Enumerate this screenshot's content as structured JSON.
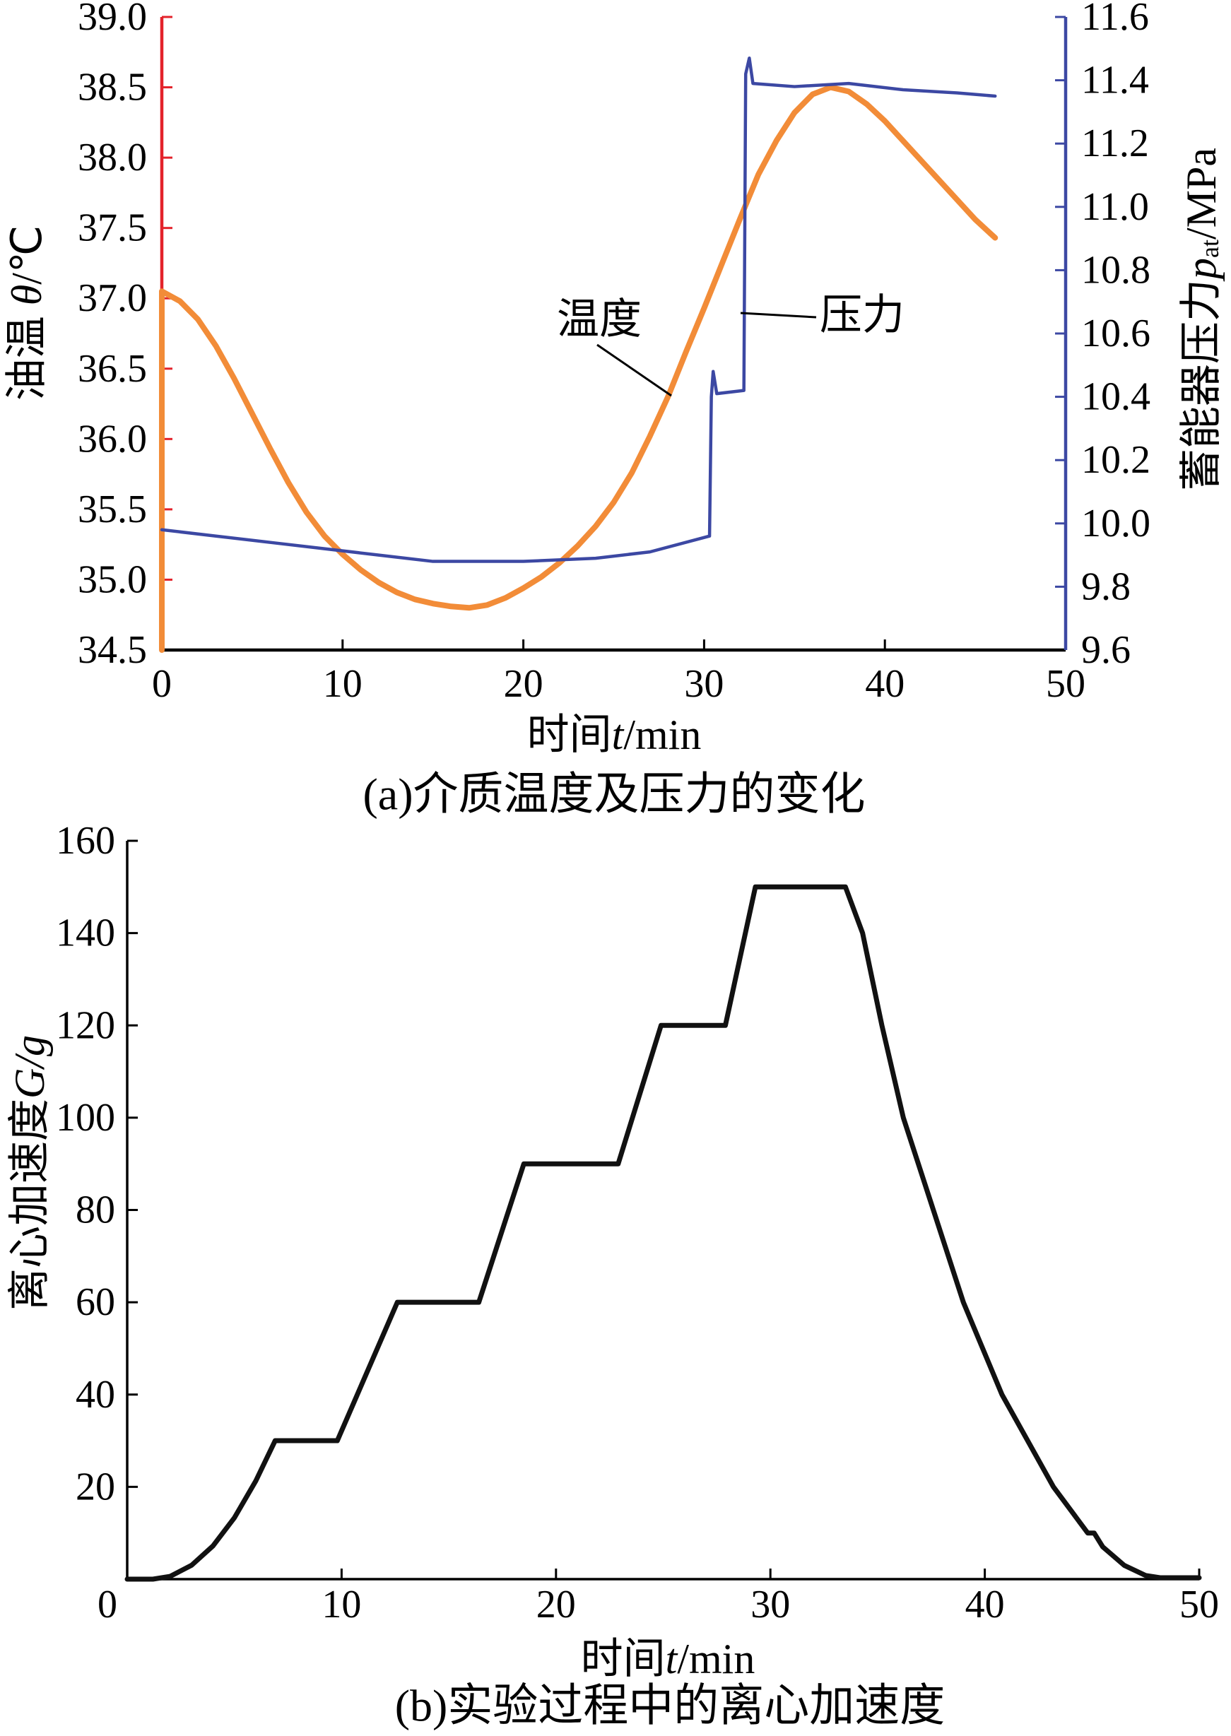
{
  "chart_data": [
    {
      "type": "line",
      "caption": "(a)介质温度及压力的变化",
      "xlabel": "时间t/min",
      "xlim": [
        0,
        50
      ],
      "xticks": [
        "0",
        "10",
        "20",
        "30",
        "40",
        "50"
      ],
      "ylabel": "油温 θ/℃",
      "ylim": [
        34.5,
        39.0
      ],
      "yticks": [
        "34.5",
        "35.0",
        "35.5",
        "36.0",
        "36.5",
        "37.0",
        "37.5",
        "38.0",
        "38.5",
        "39.0"
      ],
      "ylabel_right": "蓄能器压力pat/MPa",
      "ylim_right": [
        9.6,
        11.6
      ],
      "yticks_right": [
        "9.6",
        "9.8",
        "10.0",
        "10.2",
        "10.4",
        "10.6",
        "10.8",
        "11.0",
        "11.2",
        "11.4",
        "11.6"
      ],
      "grid": false,
      "axis_colors": {
        "left": "#e3232b",
        "right": "#3c48a3",
        "bottom": "#000000"
      },
      "series": [
        {
          "name": "温度",
          "axis": "left",
          "color": "#f28c38",
          "x": [
            0,
            0,
            1,
            2,
            3,
            4,
            5,
            6,
            7,
            8,
            9,
            10,
            11,
            12,
            13,
            14,
            15,
            16,
            17,
            18,
            19,
            20,
            21,
            22,
            23,
            24,
            25,
            26,
            27,
            28,
            29,
            30,
            31,
            32,
            33,
            34,
            35,
            36,
            37,
            38,
            39,
            40,
            41,
            42,
            43,
            44,
            45,
            46.1
          ],
          "y": [
            34.5,
            37.05,
            36.98,
            36.85,
            36.66,
            36.43,
            36.18,
            35.93,
            35.69,
            35.48,
            35.31,
            35.18,
            35.07,
            34.98,
            34.91,
            34.86,
            34.83,
            34.81,
            34.8,
            34.82,
            34.87,
            34.94,
            35.02,
            35.12,
            35.24,
            35.38,
            35.55,
            35.76,
            36.02,
            36.3,
            36.62,
            36.93,
            37.25,
            37.57,
            37.88,
            38.12,
            38.32,
            38.45,
            38.5,
            38.47,
            38.38,
            38.26,
            38.12,
            37.98,
            37.84,
            37.7,
            37.56,
            37.43
          ]
        },
        {
          "name": "压力",
          "axis": "right",
          "color": "#3c48a3",
          "x": [
            0,
            3,
            6,
            9,
            12,
            15,
            20,
            24,
            27,
            30.3,
            30.4,
            30.5,
            30.7,
            32.2,
            32.3,
            32.5,
            32.7,
            35,
            38,
            41,
            44,
            46.1
          ],
          "y": [
            9.98,
            9.96,
            9.94,
            9.92,
            9.9,
            9.88,
            9.88,
            9.89,
            9.91,
            9.96,
            10.4,
            10.48,
            10.41,
            10.42,
            11.42,
            11.47,
            11.39,
            11.38,
            11.39,
            11.37,
            11.36,
            11.35
          ]
        }
      ]
    },
    {
      "type": "line",
      "caption": "(b)实验过程中的离心加速度",
      "xlabel": "时间t/min",
      "xlim": [
        0,
        50
      ],
      "xticks": [
        "0",
        "10",
        "20",
        "30",
        "40",
        "50"
      ],
      "ylabel": "离心加速度G/g",
      "ylim": [
        0,
        160
      ],
      "yticks": [
        "20",
        "40",
        "60",
        "80",
        "100",
        "120",
        "140",
        "160"
      ],
      "grid": false,
      "axis_colors": {
        "left": "#000000",
        "bottom": "#000000"
      },
      "series": [
        {
          "axis": "left",
          "color": "#111111",
          "x": [
            0,
            1.2,
            2,
            3,
            4,
            5,
            6,
            6.9,
            9.8,
            12.6,
            16.4,
            18.5,
            22.9,
            24.9,
            27.9,
            29.3,
            33.5,
            34.3,
            35.2,
            36.2,
            37.6,
            39.0,
            40.8,
            43.2,
            44.8,
            45.1,
            45.5,
            46.5,
            47.5,
            48.2,
            50
          ],
          "y": [
            0,
            0,
            0.6,
            3,
            7.2,
            13.3,
            21.3,
            30,
            30,
            60,
            60,
            90,
            90,
            120,
            120,
            150,
            150,
            140,
            120,
            100,
            80,
            60,
            40,
            20,
            10,
            10,
            7,
            3,
            0.8,
            0.3,
            0.3
          ]
        }
      ]
    }
  ]
}
